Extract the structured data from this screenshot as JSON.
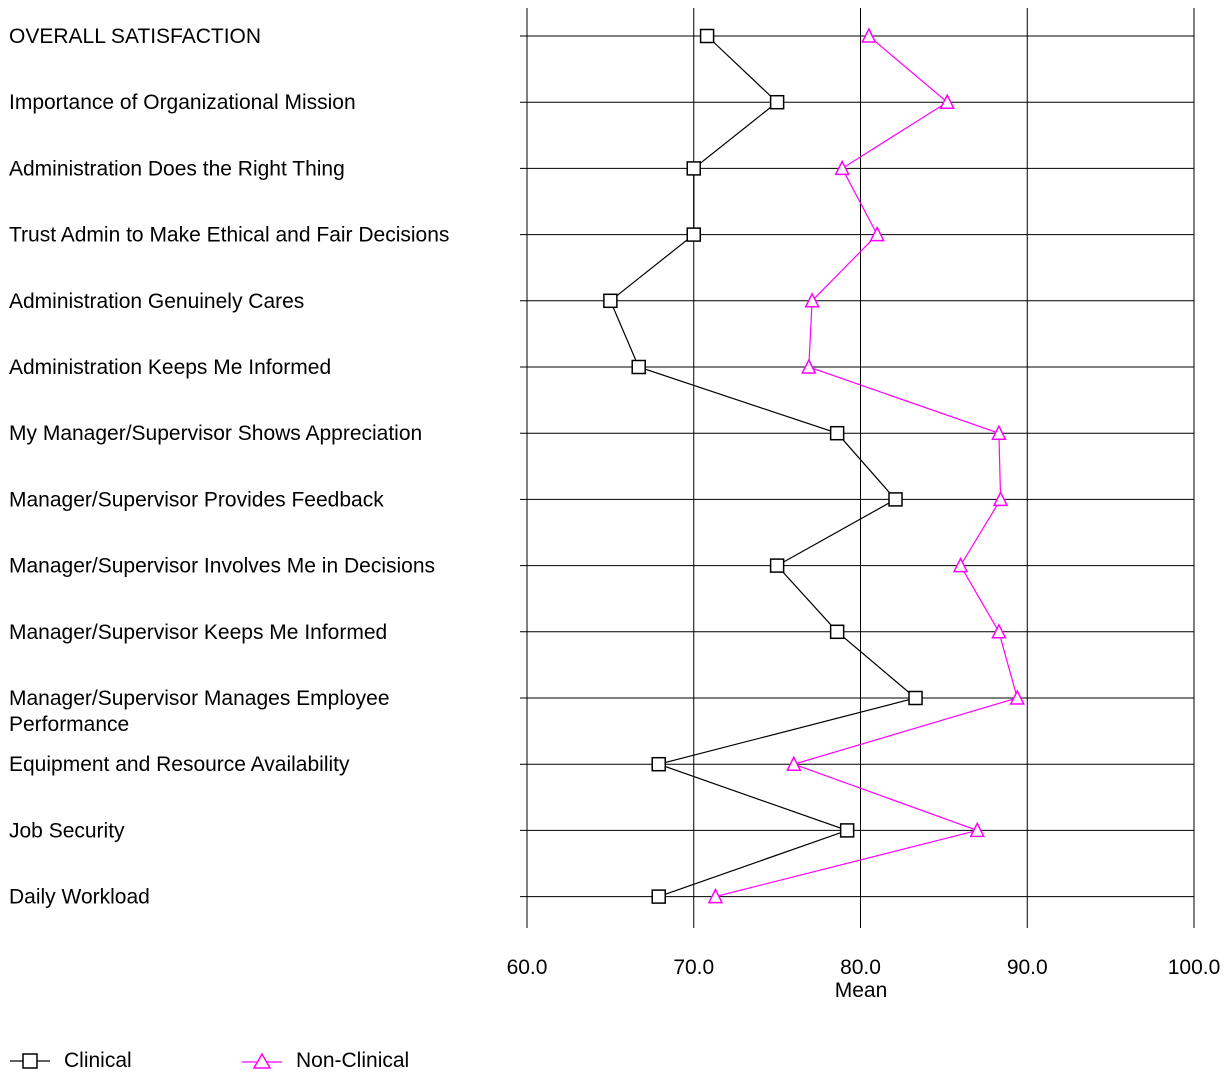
{
  "chart_data": {
    "type": "line",
    "orientation": "horizontal",
    "categories": [
      [
        "OVERALL SATISFACTION"
      ],
      [
        "Importance of Organizational Mission"
      ],
      [
        "Administration Does the Right Thing"
      ],
      [
        "Trust Admin to Make Ethical and Fair Decisions"
      ],
      [
        "Administration Genuinely Cares"
      ],
      [
        "Administration Keeps Me Informed"
      ],
      [
        "My Manager/Supervisor Shows Appreciation"
      ],
      [
        "Manager/Supervisor Provides Feedback"
      ],
      [
        "Manager/Supervisor Involves Me in Decisions"
      ],
      [
        "Manager/Supervisor Keeps Me Informed"
      ],
      [
        "Manager/Supervisor Manages Employee",
        "Performance"
      ],
      [
        "Equipment and Resource Availability"
      ],
      [
        "Job Security"
      ],
      [
        "Daily Workload"
      ]
    ],
    "series": [
      {
        "name": "Clinical",
        "color": "#000000",
        "marker": "square",
        "values": [
          70.8,
          75.0,
          70.0,
          70.0,
          65.0,
          66.7,
          78.6,
          82.1,
          75.0,
          78.6,
          83.3,
          67.9,
          79.2,
          67.9
        ]
      },
      {
        "name": "Non-Clinical",
        "color": "#ff00ff",
        "marker": "triangle",
        "values": [
          80.5,
          85.2,
          78.9,
          81.0,
          77.1,
          76.9,
          88.3,
          88.4,
          86.0,
          88.3,
          89.4,
          76.0,
          87.0,
          71.3
        ]
      }
    ],
    "xlabel": "Mean",
    "xlim": [
      60,
      100
    ],
    "xticks": [
      "60.0",
      "70.0",
      "80.0",
      "90.0",
      "100.0"
    ],
    "grid": true,
    "legend_position": "bottom-left"
  }
}
